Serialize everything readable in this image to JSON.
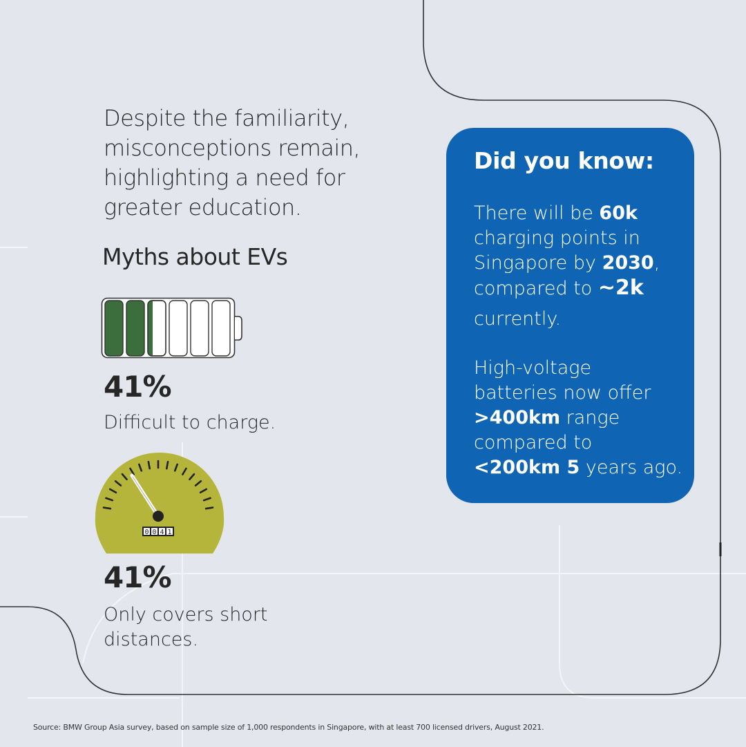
{
  "intro": {
    "line1": "Despite the familiarity,",
    "line2": "misconceptions remain,",
    "line3": "highlighting a need for",
    "line4": "greater education."
  },
  "myths": {
    "title": "Myths about EVs",
    "items": [
      {
        "percent": "41%",
        "line1": "Difficult to charge.",
        "line2": "",
        "icon": "battery-icon",
        "battery_level": 0.41,
        "battery_segments_filled": 2.5,
        "battery_segments_total": 6
      },
      {
        "percent": "41%",
        "line1": "Only covers short",
        "line2": "distances.",
        "icon": "speedometer-icon",
        "odometer": "0041"
      }
    ]
  },
  "did_you_know": {
    "title": "Did you know:",
    "p1": {
      "t1": "There will be ",
      "b1": "60k",
      "t2": "charging points in",
      "t3": "Singapore by ",
      "b2": "2030",
      "t4": ",",
      "t5": "compared to ",
      "b3": "~2k",
      "t6": "currently."
    },
    "p2": {
      "t1": "High-voltage",
      "t2": "batteries now offer",
      "b1": ">400km",
      "t3": " range",
      "t4": "compared to",
      "b2": "<200km 5",
      "t5": " years ago."
    }
  },
  "source": "Source: BMW Group Asia survey, based on sample size of 1,000 respondents in Singapore, with at least 700 licensed drivers, August 2021.",
  "colors": {
    "background": "#e3e7ed",
    "card": "#0f65b3",
    "battery_fill": "#3b6e3c",
    "gauge": "#b5b43b",
    "text": "#262626"
  }
}
